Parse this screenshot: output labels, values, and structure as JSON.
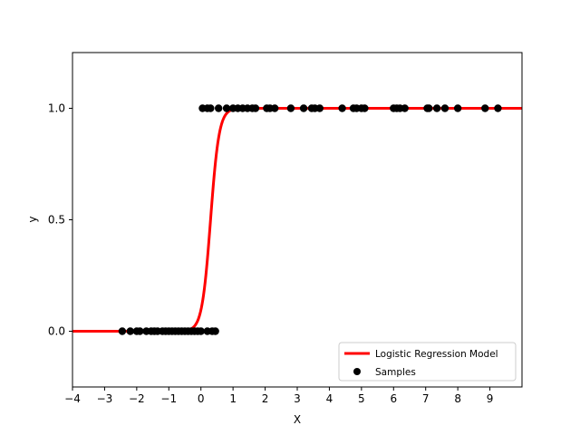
{
  "chart_data": {
    "type": "scatter",
    "xlabel": "X",
    "ylabel": "y",
    "xlim": [
      -4,
      10
    ],
    "ylim": [
      -0.25,
      1.25
    ],
    "xticks": [
      -4,
      -3,
      -2,
      -1,
      0,
      1,
      2,
      3,
      4,
      5,
      6,
      7,
      8,
      9
    ],
    "yticks": [
      0.0,
      0.5,
      1.0
    ],
    "ytick_labels": [
      "0.0",
      "0.5",
      "1.0"
    ],
    "grid": false,
    "legend_position": "lower-right",
    "series": [
      {
        "name": "Logistic Regression Model",
        "kind": "line",
        "color": "#ff0000",
        "model": {
          "function": "logistic",
          "midpoint": 0.3,
          "slope": 7.5
        },
        "x_range": [
          -4,
          10
        ]
      },
      {
        "name": "Samples",
        "kind": "scatter",
        "color": "#000000",
        "points": [
          [
            -2.45,
            0
          ],
          [
            -2.2,
            0
          ],
          [
            -2.0,
            0
          ],
          [
            -1.9,
            0
          ],
          [
            -1.7,
            0
          ],
          [
            -1.55,
            0
          ],
          [
            -1.45,
            0
          ],
          [
            -1.35,
            0
          ],
          [
            -1.2,
            0
          ],
          [
            -1.1,
            0
          ],
          [
            -1.0,
            0
          ],
          [
            -0.9,
            0
          ],
          [
            -0.8,
            0
          ],
          [
            -0.7,
            0
          ],
          [
            -0.6,
            0
          ],
          [
            -0.5,
            0
          ],
          [
            -0.4,
            0
          ],
          [
            -0.3,
            0
          ],
          [
            -0.2,
            0
          ],
          [
            -0.1,
            0
          ],
          [
            0.0,
            0
          ],
          [
            0.2,
            0
          ],
          [
            0.35,
            0
          ],
          [
            0.45,
            0
          ],
          [
            0.05,
            1
          ],
          [
            0.2,
            1
          ],
          [
            0.3,
            1
          ],
          [
            0.55,
            1
          ],
          [
            0.8,
            1
          ],
          [
            1.0,
            1
          ],
          [
            1.15,
            1
          ],
          [
            1.3,
            1
          ],
          [
            1.45,
            1
          ],
          [
            1.6,
            1
          ],
          [
            1.7,
            1
          ],
          [
            2.05,
            1
          ],
          [
            2.15,
            1
          ],
          [
            2.3,
            1
          ],
          [
            2.8,
            1
          ],
          [
            3.2,
            1
          ],
          [
            3.45,
            1
          ],
          [
            3.55,
            1
          ],
          [
            3.7,
            1
          ],
          [
            4.4,
            1
          ],
          [
            4.75,
            1
          ],
          [
            4.85,
            1
          ],
          [
            5.0,
            1
          ],
          [
            5.1,
            1
          ],
          [
            6.0,
            1
          ],
          [
            6.1,
            1
          ],
          [
            6.2,
            1
          ],
          [
            6.35,
            1
          ],
          [
            7.05,
            1
          ],
          [
            7.1,
            1
          ],
          [
            7.35,
            1
          ],
          [
            7.6,
            1
          ],
          [
            8.0,
            1
          ],
          [
            8.85,
            1
          ],
          [
            9.25,
            1
          ]
        ]
      }
    ]
  }
}
